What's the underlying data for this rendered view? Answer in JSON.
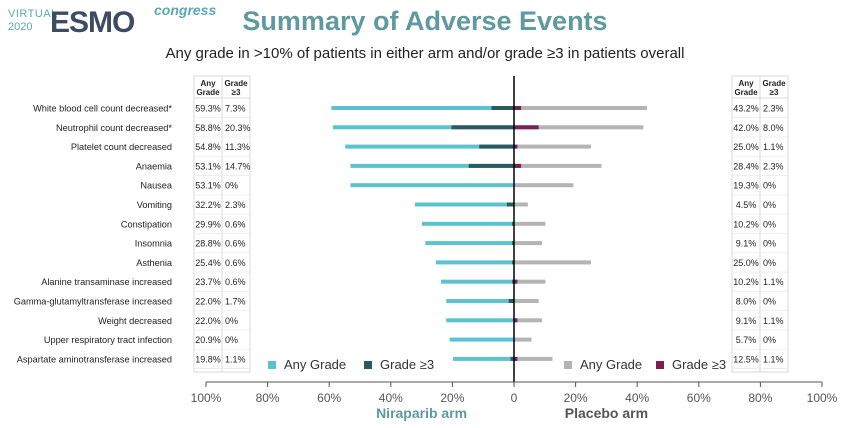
{
  "logo": {
    "virtual": "VIRTUAL",
    "year": "2020",
    "brand": "ESMO",
    "suffix": "congress"
  },
  "title": "Summary of Adverse Events",
  "subtitle": "Any grade in >10% of patients in either arm and/or grade ≥3 in patients overall",
  "colors": {
    "niraparib_any": "#5bc2cf",
    "niraparib_g3": "#2b5a5e",
    "placebo_any": "#b4b4b4",
    "placebo_g3": "#7a1f52",
    "axis": "#555555",
    "niraparib_label": "#5e9aa0",
    "placebo_label": "#555555"
  },
  "table_headers": {
    "any": [
      "Any",
      "Grade"
    ],
    "g3": [
      "Grade",
      "≥3"
    ]
  },
  "legend": {
    "left_any": "Any Grade",
    "left_g3": "Grade ≥3",
    "right_any": "Any Grade",
    "right_g3": "Grade ≥3"
  },
  "chart_data": {
    "type": "bar",
    "orientation": "horizontal-back-to-back",
    "categories": [
      "White blood cell count decreased*",
      "Neutrophil count decreased*",
      "Platelet count decreased",
      "Anaemia",
      "Nausea",
      "Vomiting",
      "Constipation",
      "Insomnia",
      "Asthenia",
      "Alanine transaminase increased",
      "Gamma-glutamyltransferase increased",
      "Weight decreased",
      "Upper respiratory tract infection",
      "Aspartate aminotransferase increased"
    ],
    "arms": [
      {
        "name": "Niraparib arm",
        "side": "left",
        "any_grade": [
          59.3,
          58.8,
          54.8,
          53.1,
          53.1,
          32.2,
          29.9,
          28.8,
          25.4,
          23.7,
          22.0,
          22.0,
          20.9,
          19.8
        ],
        "grade3": [
          7.3,
          20.3,
          11.3,
          14.7,
          0,
          2.3,
          0.6,
          0.6,
          0.6,
          0.6,
          1.7,
          0,
          0,
          1.1
        ],
        "any_labels": [
          "59.3%",
          "58.8%",
          "54.8%",
          "53.1%",
          "53.1%",
          "32.2%",
          "29.9%",
          "28.8%",
          "25.4%",
          "23.7%",
          "22.0%",
          "22.0%",
          "20.9%",
          "19.8%"
        ],
        "g3_labels": [
          "7.3%",
          "20.3%",
          "11.3%",
          "14.7%",
          "0%",
          "2.3%",
          "0.6%",
          "0.6%",
          "0.6%",
          "0.6%",
          "1.7%",
          "0%",
          "0%",
          "1.1%"
        ]
      },
      {
        "name": "Placebo arm",
        "side": "right",
        "any_grade": [
          43.2,
          42.0,
          25.0,
          28.4,
          19.3,
          4.5,
          10.2,
          9.1,
          25.0,
          10.2,
          8.0,
          9.1,
          5.7,
          12.5
        ],
        "grade3": [
          2.3,
          8.0,
          1.1,
          2.3,
          0,
          0,
          0,
          0,
          0,
          1.1,
          0,
          1.1,
          0,
          1.1
        ],
        "any_labels": [
          "43.2%",
          "42.0%",
          "25.0%",
          "28.4%",
          "19.3%",
          "4.5%",
          "10.2%",
          "9.1%",
          "25.0%",
          "10.2%",
          "8.0%",
          "9.1%",
          "5.7%",
          "12.5%"
        ],
        "g3_labels": [
          "2.3%",
          "8.0%",
          "1.1%",
          "2.3%",
          "0%",
          "0%",
          "0%",
          "0%",
          "0%",
          "1.1%",
          "0%",
          "1.1%",
          "0%",
          "1.1%"
        ]
      }
    ],
    "x_ticks": [
      100,
      80,
      60,
      40,
      20,
      0,
      20,
      40,
      60,
      80,
      100
    ],
    "x_tick_labels": [
      "100%",
      "80%",
      "60%",
      "40%",
      "20%",
      "0",
      "20%",
      "40%",
      "60%",
      "80%",
      "100%"
    ],
    "xlim": [
      -100,
      100
    ],
    "grid": false,
    "legend_placement": "bottom"
  }
}
